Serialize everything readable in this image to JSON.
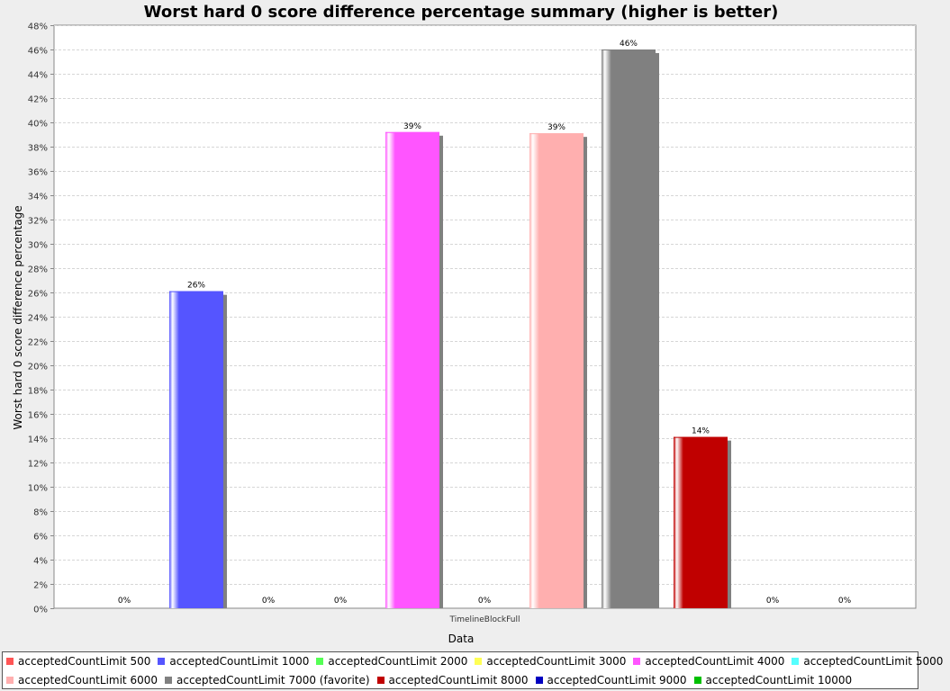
{
  "chart_data": {
    "type": "bar",
    "title": "Worst hard 0 score difference percentage summary (higher is better)",
    "xlabel": "Data",
    "ylabel": "Worst hard 0 score difference percentage",
    "categories": [
      "TimelineBlockFull"
    ],
    "ylim": [
      0,
      48
    ],
    "ytick_step": 2,
    "tick_suffix": "%",
    "grid": true,
    "legend_position": "bottom",
    "series": [
      {
        "name": "acceptedCountLimit 500",
        "values": [
          0
        ],
        "label": "0%",
        "color": "#ff5555"
      },
      {
        "name": "acceptedCountLimit 1000",
        "values": [
          26.1
        ],
        "label": "26%",
        "color": "#5555ff"
      },
      {
        "name": "acceptedCountLimit 2000",
        "values": [
          0
        ],
        "label": "0%",
        "color": "#55ff55"
      },
      {
        "name": "acceptedCountLimit 3000",
        "values": [
          0
        ],
        "label": "0%",
        "color": "#ffff55"
      },
      {
        "name": "acceptedCountLimit 4000",
        "values": [
          39.2
        ],
        "label": "39%",
        "color": "#ff55ff"
      },
      {
        "name": "acceptedCountLimit 5000",
        "values": [
          0
        ],
        "label": "0%",
        "color": "#55ffff"
      },
      {
        "name": "acceptedCountLimit 6000",
        "values": [
          39.1
        ],
        "label": "39%",
        "color": "#ffafaf"
      },
      {
        "name": "acceptedCountLimit 7000 (favorite)",
        "values": [
          46.0
        ],
        "label": "46%",
        "color": "#808080"
      },
      {
        "name": "acceptedCountLimit 8000",
        "values": [
          14.1
        ],
        "label": "14%",
        "color": "#c00000"
      },
      {
        "name": "acceptedCountLimit 9000",
        "values": [
          0
        ],
        "label": "0%",
        "color": "#0000c0"
      },
      {
        "name": "acceptedCountLimit 10000",
        "values": [
          0
        ],
        "label": "0%",
        "color": "#00c000"
      }
    ]
  }
}
